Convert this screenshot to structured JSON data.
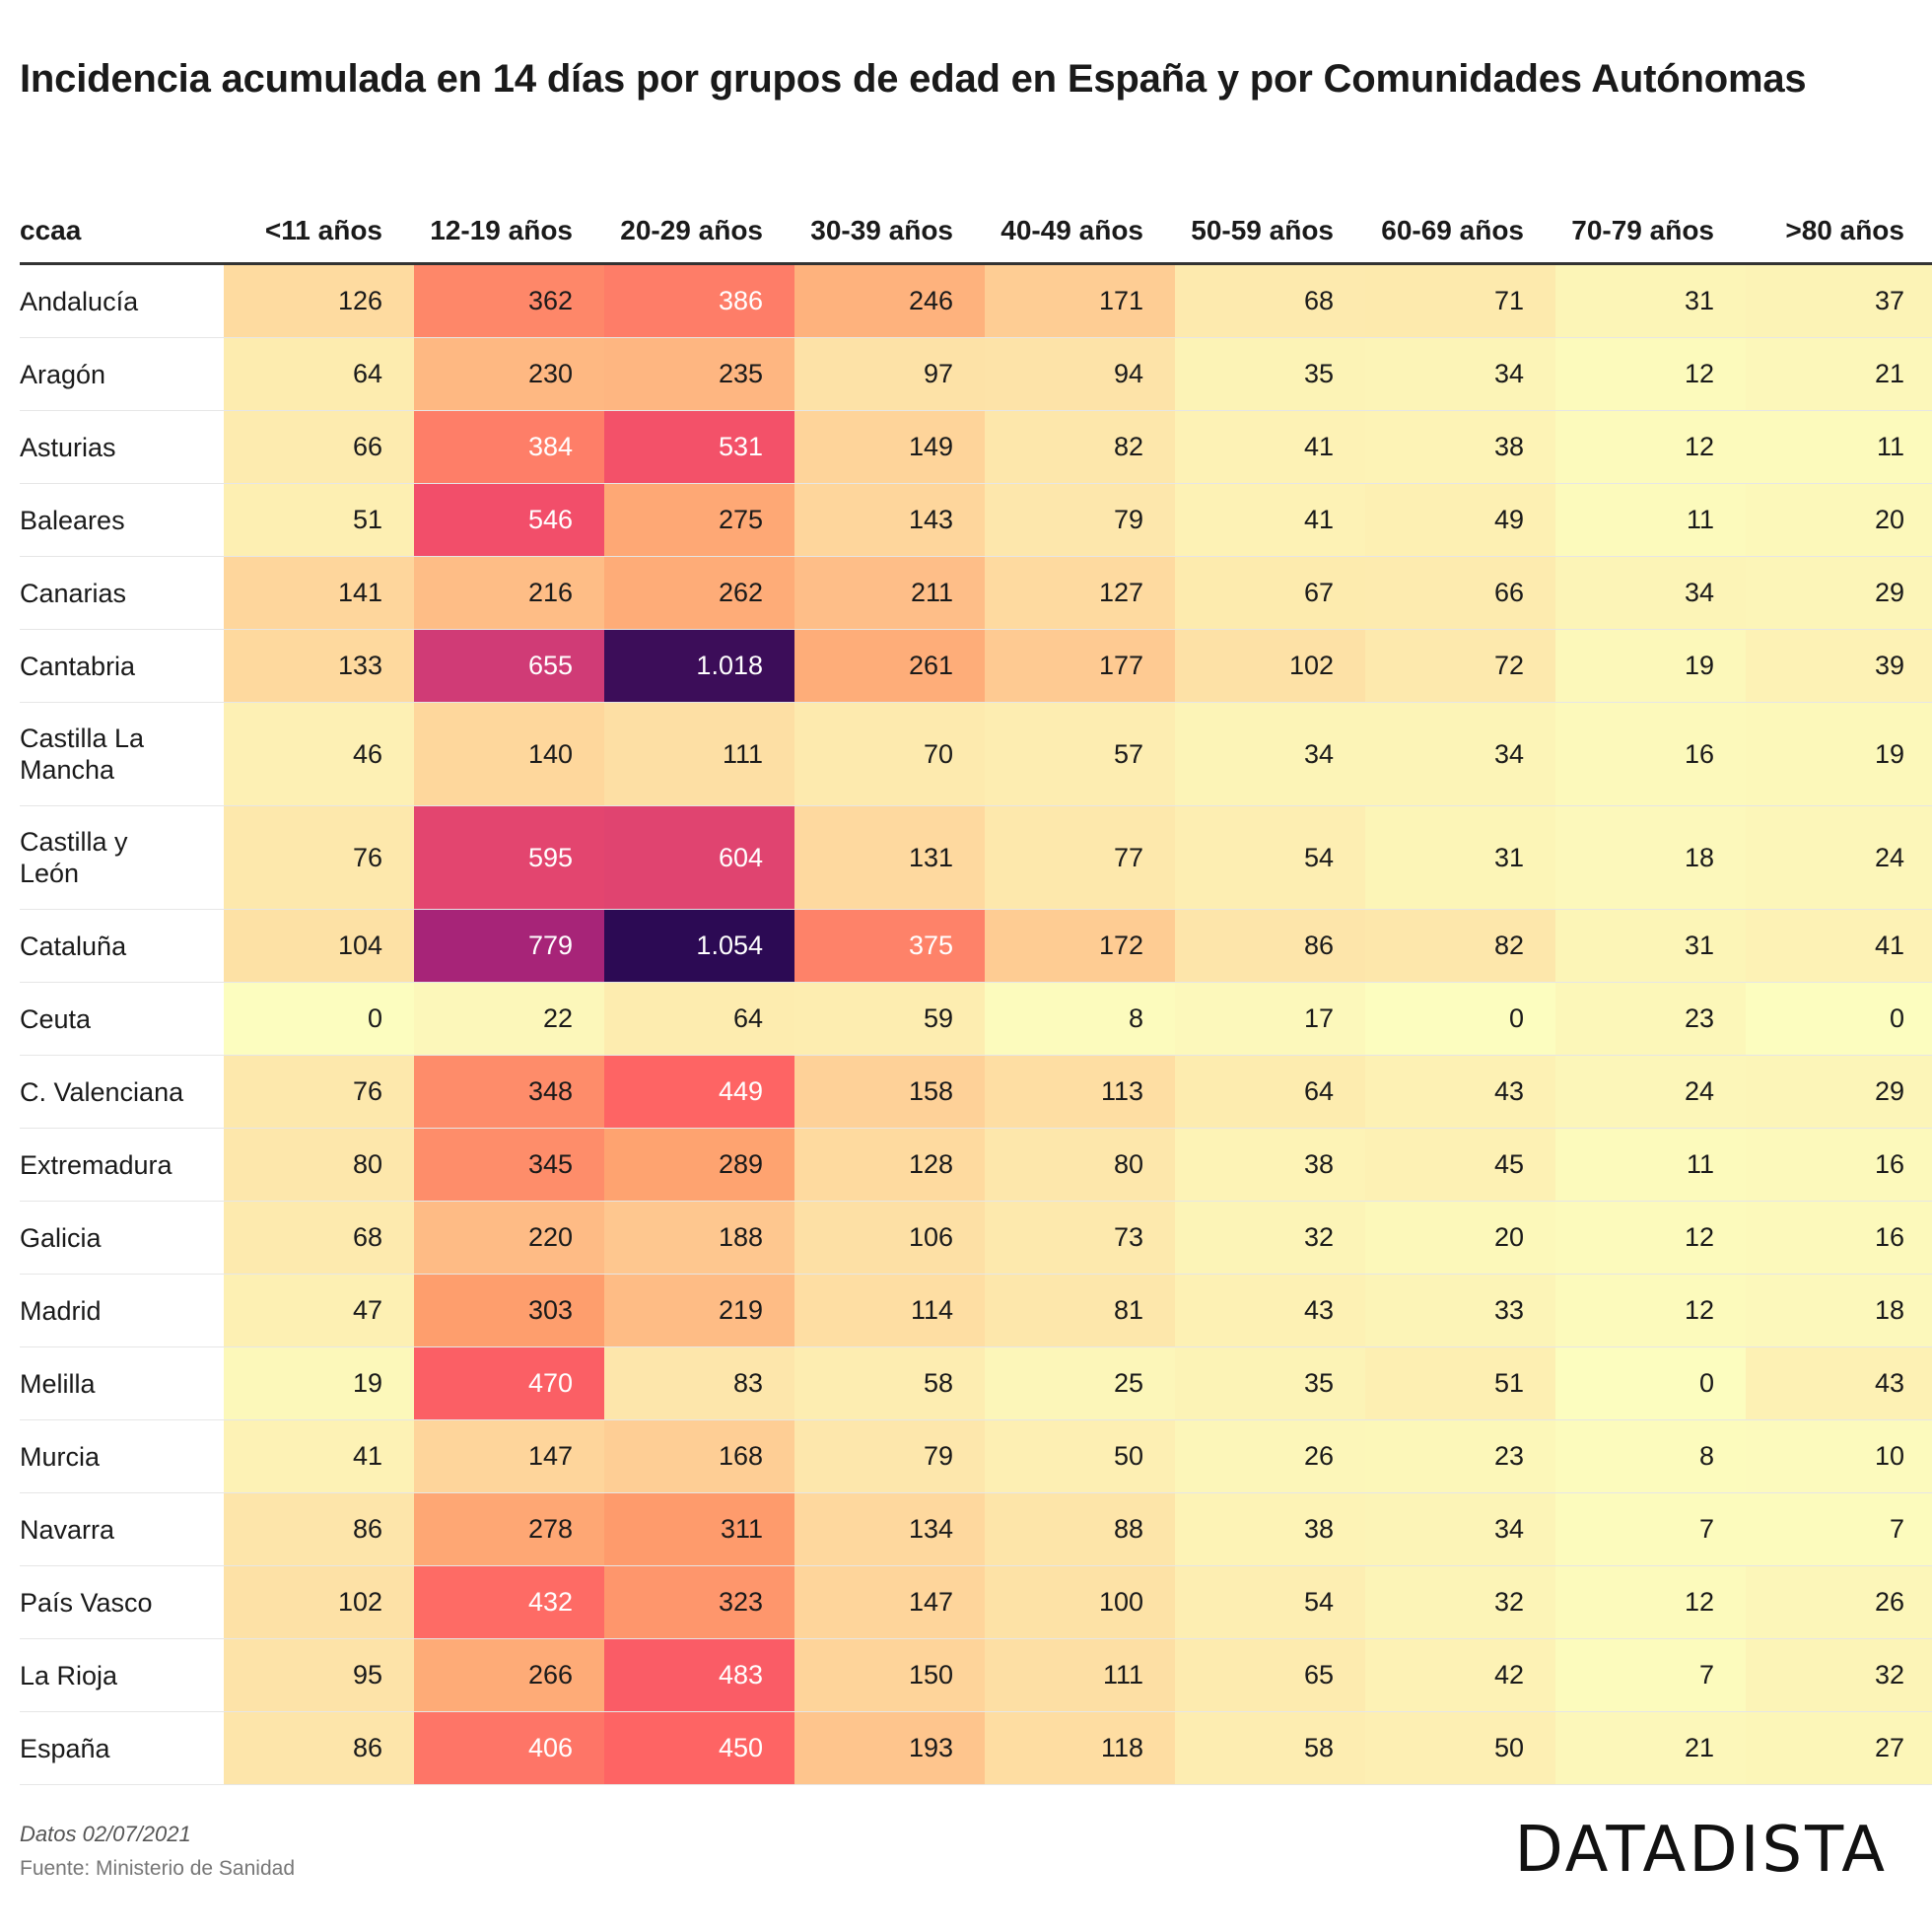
{
  "title": "Incidencia acumulada en 14 días por grupos de edad en España y por Comunidades Autónomas",
  "footer": {
    "date": "Datos 02/07/2021",
    "source": "Fuente: Ministerio de Sanidad",
    "logo": "DATADISTA"
  },
  "colors": {
    "low": "#fcfdbf",
    "mid": "#fe9f6d",
    "high": "#de4968",
    "higher": "#8c2981",
    "max": "#3b0f70"
  },
  "chart_data": {
    "type": "heatmap",
    "title": "Incidencia acumulada en 14 días por grupos de edad en España y por Comunidades Autónomas",
    "row_header": "ccaa",
    "columns": [
      "<11 años",
      "12-19 años",
      "20-29 años",
      "30-39 años",
      "40-49 años",
      "50-59 años",
      "60-69 años",
      "70-79 años",
      ">80 años"
    ],
    "rows": [
      {
        "name": "Andalucía",
        "values": [
          126,
          362,
          386,
          246,
          171,
          68,
          71,
          31,
          37
        ],
        "labels": [
          "126",
          "362",
          "386",
          "246",
          "171",
          "68",
          "71",
          "31",
          "37"
        ]
      },
      {
        "name": "Aragón",
        "values": [
          64,
          230,
          235,
          97,
          94,
          35,
          34,
          12,
          21
        ],
        "labels": [
          "64",
          "230",
          "235",
          "97",
          "94",
          "35",
          "34",
          "12",
          "21"
        ]
      },
      {
        "name": "Asturias",
        "values": [
          66,
          384,
          531,
          149,
          82,
          41,
          38,
          12,
          11
        ],
        "labels": [
          "66",
          "384",
          "531",
          "149",
          "82",
          "41",
          "38",
          "12",
          "11"
        ]
      },
      {
        "name": "Baleares",
        "values": [
          51,
          546,
          275,
          143,
          79,
          41,
          49,
          11,
          20
        ],
        "labels": [
          "51",
          "546",
          "275",
          "143",
          "79",
          "41",
          "49",
          "11",
          "20"
        ]
      },
      {
        "name": "Canarias",
        "values": [
          141,
          216,
          262,
          211,
          127,
          67,
          66,
          34,
          29
        ],
        "labels": [
          "141",
          "216",
          "262",
          "211",
          "127",
          "67",
          "66",
          "34",
          "29"
        ]
      },
      {
        "name": "Cantabria",
        "values": [
          133,
          655,
          1018,
          261,
          177,
          102,
          72,
          19,
          39
        ],
        "labels": [
          "133",
          "655",
          "1.018",
          "261",
          "177",
          "102",
          "72",
          "19",
          "39"
        ]
      },
      {
        "name": "Castilla La Mancha",
        "values": [
          46,
          140,
          111,
          70,
          57,
          34,
          34,
          16,
          19
        ],
        "labels": [
          "46",
          "140",
          "111",
          "70",
          "57",
          "34",
          "34",
          "16",
          "19"
        ]
      },
      {
        "name": "Castilla y León",
        "values": [
          76,
          595,
          604,
          131,
          77,
          54,
          31,
          18,
          24
        ],
        "labels": [
          "76",
          "595",
          "604",
          "131",
          "77",
          "54",
          "31",
          "18",
          "24"
        ]
      },
      {
        "name": "Cataluña",
        "values": [
          104,
          779,
          1054,
          375,
          172,
          86,
          82,
          31,
          41
        ],
        "labels": [
          "104",
          "779",
          "1.054",
          "375",
          "172",
          "86",
          "82",
          "31",
          "41"
        ]
      },
      {
        "name": "Ceuta",
        "values": [
          0,
          22,
          64,
          59,
          8,
          17,
          0,
          23,
          0
        ],
        "labels": [
          "0",
          "22",
          "64",
          "59",
          "8",
          "17",
          "0",
          "23",
          "0"
        ]
      },
      {
        "name": "C. Valenciana",
        "values": [
          76,
          348,
          449,
          158,
          113,
          64,
          43,
          24,
          29
        ],
        "labels": [
          "76",
          "348",
          "449",
          "158",
          "113",
          "64",
          "43",
          "24",
          "29"
        ]
      },
      {
        "name": "Extremadura",
        "values": [
          80,
          345,
          289,
          128,
          80,
          38,
          45,
          11,
          16
        ],
        "labels": [
          "80",
          "345",
          "289",
          "128",
          "80",
          "38",
          "45",
          "11",
          "16"
        ]
      },
      {
        "name": "Galicia",
        "values": [
          68,
          220,
          188,
          106,
          73,
          32,
          20,
          12,
          16
        ],
        "labels": [
          "68",
          "220",
          "188",
          "106",
          "73",
          "32",
          "20",
          "12",
          "16"
        ]
      },
      {
        "name": "Madrid",
        "values": [
          47,
          303,
          219,
          114,
          81,
          43,
          33,
          12,
          18
        ],
        "labels": [
          "47",
          "303",
          "219",
          "114",
          "81",
          "43",
          "33",
          "12",
          "18"
        ]
      },
      {
        "name": "Melilla",
        "values": [
          19,
          470,
          83,
          58,
          25,
          35,
          51,
          0,
          43
        ],
        "labels": [
          "19",
          "470",
          "83",
          "58",
          "25",
          "35",
          "51",
          "0",
          "43"
        ]
      },
      {
        "name": "Murcia",
        "values": [
          41,
          147,
          168,
          79,
          50,
          26,
          23,
          8,
          10
        ],
        "labels": [
          "41",
          "147",
          "168",
          "79",
          "50",
          "26",
          "23",
          "8",
          "10"
        ]
      },
      {
        "name": "Navarra",
        "values": [
          86,
          278,
          311,
          134,
          88,
          38,
          34,
          7,
          7
        ],
        "labels": [
          "86",
          "278",
          "311",
          "134",
          "88",
          "38",
          "34",
          "7",
          "7"
        ]
      },
      {
        "name": "País Vasco",
        "values": [
          102,
          432,
          323,
          147,
          100,
          54,
          32,
          12,
          26
        ],
        "labels": [
          "102",
          "432",
          "323",
          "147",
          "100",
          "54",
          "32",
          "12",
          "26"
        ]
      },
      {
        "name": "La Rioja",
        "values": [
          95,
          266,
          483,
          150,
          111,
          65,
          42,
          7,
          32
        ],
        "labels": [
          "95",
          "266",
          "483",
          "150",
          "111",
          "65",
          "42",
          "7",
          "32"
        ]
      },
      {
        "name": "España",
        "values": [
          86,
          406,
          450,
          193,
          118,
          58,
          50,
          21,
          27
        ],
        "labels": [
          "86",
          "406",
          "450",
          "193",
          "118",
          "58",
          "50",
          "21",
          "27"
        ]
      }
    ]
  }
}
